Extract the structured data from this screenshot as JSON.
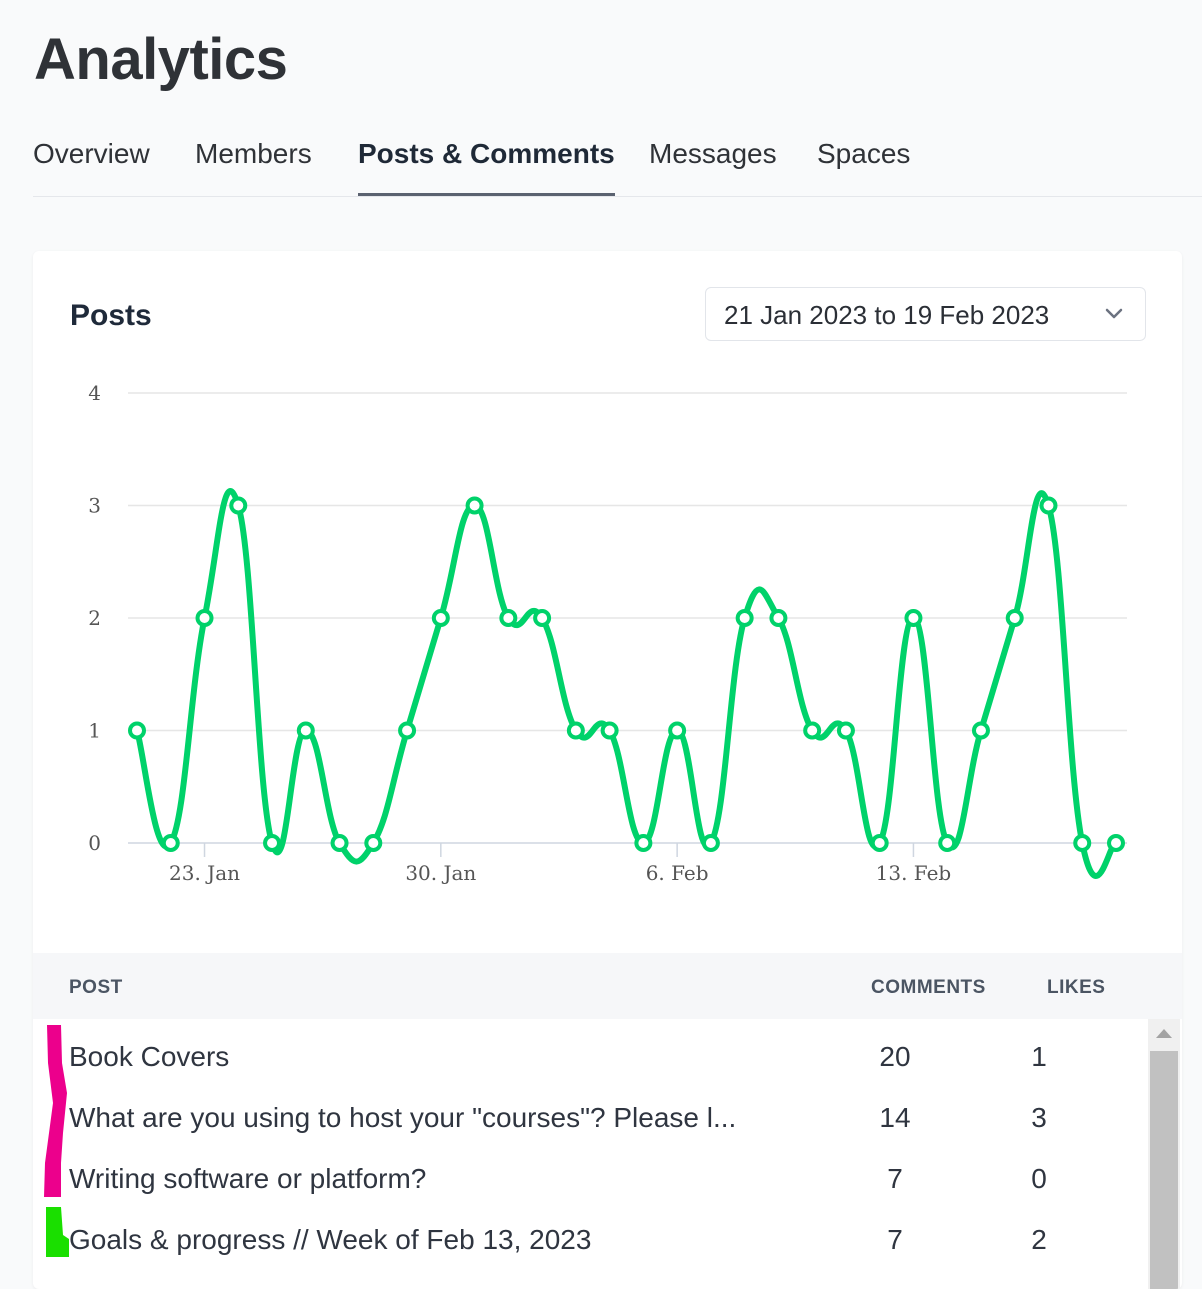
{
  "page": {
    "title": "Analytics"
  },
  "tabs": [
    {
      "label": "Overview"
    },
    {
      "label": "Members"
    },
    {
      "label": "Posts & Comments"
    },
    {
      "label": "Messages"
    },
    {
      "label": "Spaces"
    }
  ],
  "card": {
    "title": "Posts",
    "date_range": "21 Jan 2023 to 19 Feb 2023"
  },
  "chart_data": {
    "type": "line",
    "title": "",
    "xlabel": "",
    "ylabel": "",
    "ylim": [
      0,
      4
    ],
    "yticks": [
      "0",
      "1",
      "2",
      "3",
      "4"
    ],
    "xticks": [
      "23. Jan",
      "30. Jan",
      "6. Feb",
      "13. Feb"
    ],
    "x": [
      "2023-01-21",
      "2023-01-22",
      "2023-01-23",
      "2023-01-24",
      "2023-01-25",
      "2023-01-26",
      "2023-01-27",
      "2023-01-28",
      "2023-01-29",
      "2023-01-30",
      "2023-01-31",
      "2023-02-01",
      "2023-02-02",
      "2023-02-03",
      "2023-02-04",
      "2023-02-05",
      "2023-02-06",
      "2023-02-07",
      "2023-02-08",
      "2023-02-09",
      "2023-02-10",
      "2023-02-11",
      "2023-02-12",
      "2023-02-13",
      "2023-02-14",
      "2023-02-15",
      "2023-02-16",
      "2023-02-17",
      "2023-02-18",
      "2023-02-19"
    ],
    "series": [
      {
        "values": [
          1,
          0,
          2,
          3,
          0,
          1,
          0,
          0,
          1,
          2,
          3,
          2,
          2,
          1,
          1,
          0,
          1,
          0,
          2,
          2,
          1,
          1,
          0,
          2,
          0,
          1,
          2,
          3,
          0,
          0
        ]
      }
    ],
    "grid": true,
    "color": "#00d26a"
  },
  "table": {
    "headers": {
      "post": "POST",
      "comments": "COMMENTS",
      "likes": "LIKES"
    },
    "rows": [
      {
        "post": "Book Covers",
        "comments": "20",
        "likes": "1"
      },
      {
        "post": "What are you using to host your \"courses\"? Please l...",
        "comments": "14",
        "likes": "3"
      },
      {
        "post": "Writing software or platform?",
        "comments": "7",
        "likes": "0"
      },
      {
        "post": "Goals & progress // Week of Feb 13, 2023",
        "comments": "7",
        "likes": "2"
      }
    ]
  },
  "colors": {
    "line": "#00d26a",
    "marker_pink": "#ec008c",
    "marker_green": "#1adf00"
  }
}
